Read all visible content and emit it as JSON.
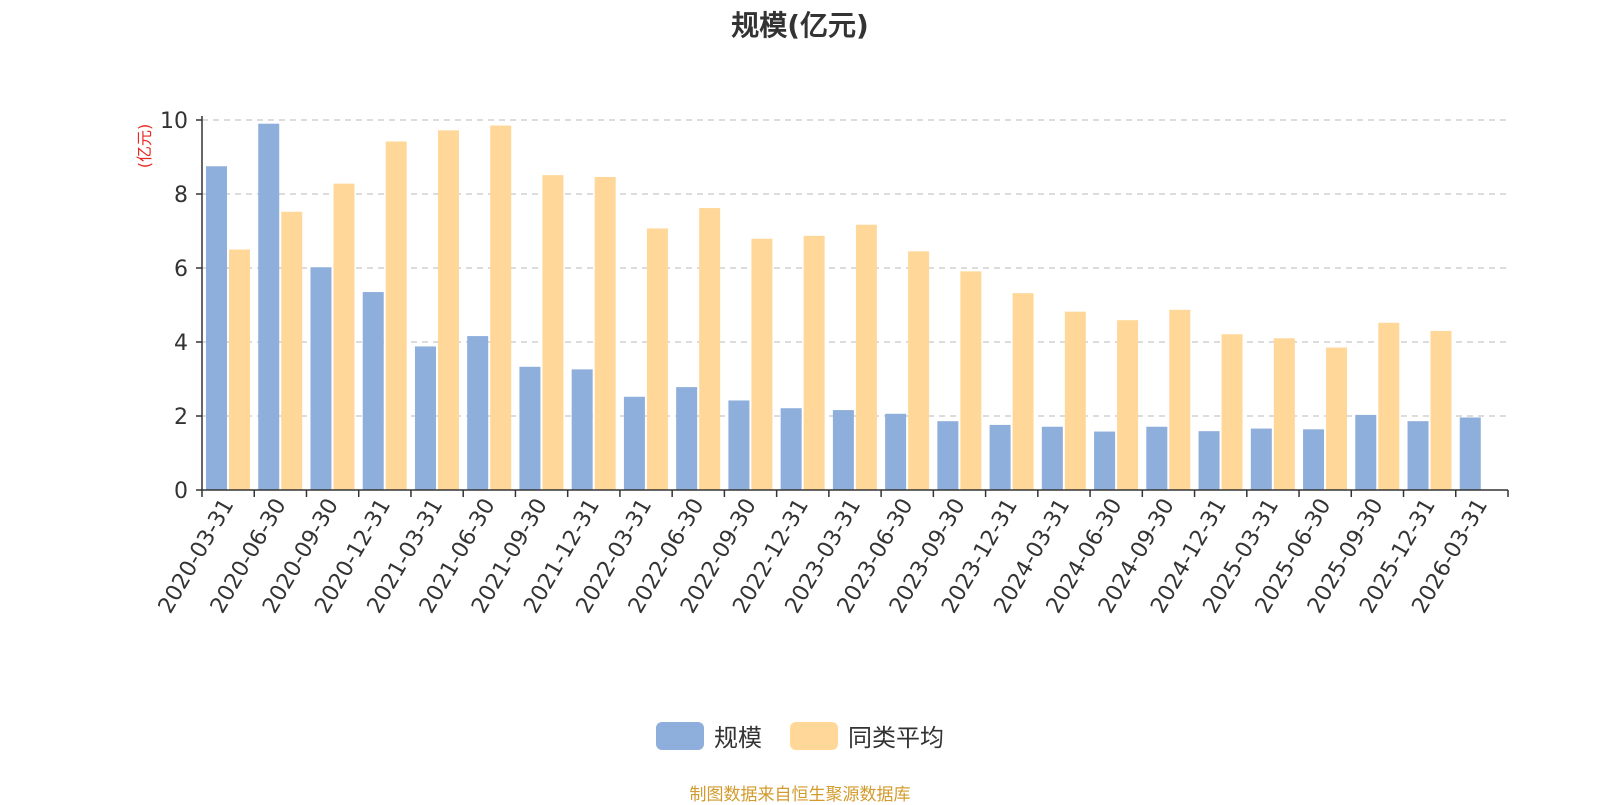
{
  "chart_data": {
    "type": "bar",
    "title": "规模(亿元)",
    "ylabel": "(亿元)",
    "ylim": [
      0,
      10
    ],
    "yticks": [
      0,
      2,
      4,
      6,
      8,
      10
    ],
    "grid": true,
    "legend_position": "bottom-center",
    "categories": [
      "2020-03-31",
      "2020-06-30",
      "2020-09-30",
      "2020-12-31",
      "2021-03-31",
      "2021-06-30",
      "2021-09-30",
      "2021-12-31",
      "2022-03-31",
      "2022-06-30",
      "2022-09-30",
      "2022-12-31",
      "2023-03-31",
      "2023-06-30",
      "2023-09-30",
      "2023-12-31",
      "2024-03-31",
      "2024-06-30",
      "2024-09-30",
      "2024-12-31",
      "2025-03-31",
      "2025-06-30",
      "2025-09-30",
      "2025-12-31",
      "2026-03-31"
    ],
    "series": [
      {
        "name": "规模",
        "color": "#8eaedb",
        "values": [
          8.75,
          9.9,
          6.02,
          5.35,
          3.88,
          4.16,
          3.33,
          3.26,
          2.52,
          2.78,
          2.42,
          2.21,
          2.16,
          2.06,
          1.86,
          1.76,
          1.71,
          1.58,
          1.71,
          1.59,
          1.66,
          1.64,
          2.03,
          1.86,
          1.96
        ]
      },
      {
        "name": "同类平均",
        "color": "#ffd899",
        "values": [
          6.5,
          7.52,
          8.28,
          9.42,
          9.72,
          9.85,
          8.51,
          8.46,
          7.07,
          7.62,
          6.79,
          6.87,
          7.17,
          6.45,
          5.91,
          5.32,
          4.82,
          4.59,
          4.87,
          4.21,
          4.1,
          3.85,
          4.52,
          4.3,
          null
        ]
      }
    ]
  },
  "source_note": "制图数据来自恒生聚源数据库",
  "colors": {
    "axis": "#333333",
    "grid": "#c8c8c8",
    "ylabel": "#e8281f",
    "tick_text": "#333333"
  }
}
